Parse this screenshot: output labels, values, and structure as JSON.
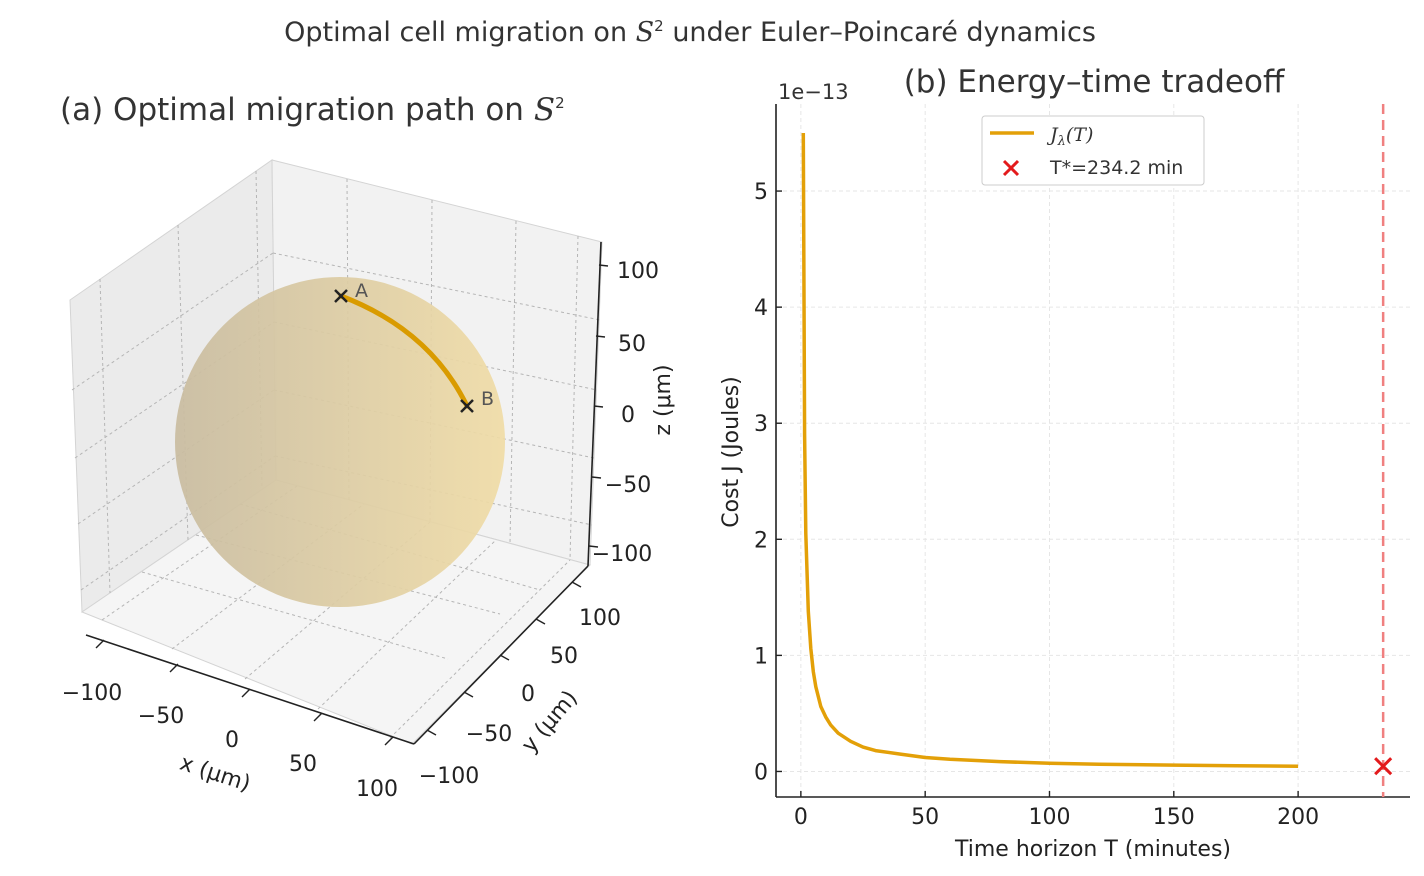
{
  "figure": {
    "title": "Optimal cell migration on",
    "title_symbol": "S",
    "title_sup": "2",
    "title_rest": "under Euler–Poincaré dynamics"
  },
  "chart_data": [
    {
      "type": "scatter3d",
      "title_text": "(a) Optimal migration path on",
      "title_symbol": "S",
      "title_sup": "2",
      "xlabel": "x (μm)",
      "ylabel": "y (μm)",
      "zlabel": "z (μm)",
      "xticks": [
        "−100",
        "−50",
        "0",
        "50",
        "100"
      ],
      "yticks": [
        "−100",
        "−50",
        "0",
        "50",
        "100"
      ],
      "zticks": [
        "100",
        "50",
        "0",
        "−50",
        "−100"
      ],
      "sphere": {
        "radius_um": 100,
        "color_light": "#f0dca6",
        "color_dark": "#c9bca0"
      },
      "path": {
        "color": "#d99b00",
        "start_label": "A",
        "end_label": "B"
      }
    },
    {
      "type": "line",
      "title": "(b) Energy–time tradeoff",
      "xlabel": "Time horizon T (minutes)",
      "ylabel": "Cost J (Joules)",
      "offset_label": "1e−13",
      "xlim": [
        -10,
        245
      ],
      "ylim": [
        -0.22,
        5.75
      ],
      "xticks": [
        0,
        50,
        100,
        150,
        200
      ],
      "yticks": [
        0,
        1,
        2,
        3,
        4,
        5
      ],
      "series": [
        {
          "name": "Jλ(T)",
          "legend_sub_symbol": "J",
          "legend_sub": "λ",
          "legend_arg": "(T)",
          "color": "#e3a008",
          "x": [
            1,
            1.5,
            2,
            3,
            4,
            5,
            6,
            8,
            10,
            12,
            15,
            20,
            25,
            30,
            40,
            50,
            60,
            80,
            100,
            120,
            150,
            175,
            200
          ],
          "y": [
            5.5,
            2.9,
            2.05,
            1.38,
            1.06,
            0.86,
            0.73,
            0.56,
            0.47,
            0.4,
            0.33,
            0.26,
            0.21,
            0.18,
            0.15,
            0.12,
            0.105,
            0.085,
            0.07,
            0.062,
            0.055,
            0.05,
            0.045
          ]
        }
      ],
      "marker": {
        "label": "T*=234.2 min",
        "x": 234.2,
        "y": 0.045,
        "color": "#e31a1c"
      },
      "vline": {
        "x": 234.2,
        "color": "#f08080"
      }
    }
  ]
}
